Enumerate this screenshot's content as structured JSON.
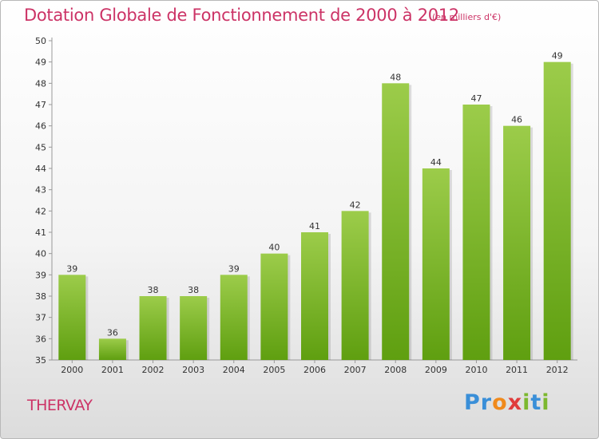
{
  "chart_data": {
    "type": "bar",
    "title": "Dotation Globale de Fonctionnement de 2000 à 2012",
    "subtitle": "(en milliers d'€)",
    "categories": [
      "2000",
      "2001",
      "2002",
      "2003",
      "2004",
      "2005",
      "2006",
      "2007",
      "2008",
      "2009",
      "2010",
      "2011",
      "2012"
    ],
    "values": [
      39,
      36,
      38,
      38,
      39,
      40,
      41,
      42,
      48,
      44,
      47,
      46,
      49
    ],
    "ylim": [
      35,
      50
    ],
    "yticks": [
      35,
      36,
      37,
      38,
      39,
      40,
      41,
      42,
      43,
      44,
      45,
      46,
      47,
      48,
      49,
      50
    ],
    "grid": false,
    "bar_color_top": "#9ccc4a",
    "bar_color_bottom": "#5f9f10",
    "data_labels": true
  },
  "footer": {
    "city": "THERVAY",
    "logo_text": "Proxiti",
    "logo_colors": [
      "#3a8fd8",
      "#3a8fd8",
      "#f08a1c",
      "#e03c3c",
      "#7cb82f",
      "#3a8fd8",
      "#7cb82f"
    ]
  }
}
